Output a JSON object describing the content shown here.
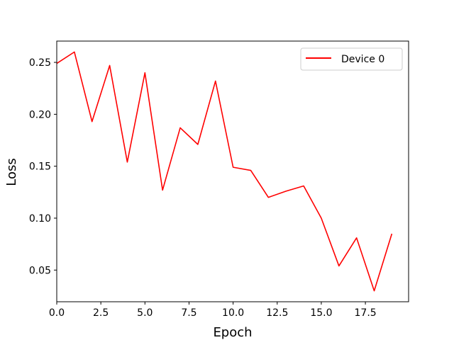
{
  "chart_data": {
    "type": "line",
    "title": "",
    "xlabel": "Epoch",
    "ylabel": "Loss",
    "xlim": [
      0,
      19.95
    ],
    "ylim": [
      0.0195,
      0.2705
    ],
    "xticks": [
      0.0,
      2.5,
      5.0,
      7.5,
      10.0,
      12.5,
      15.0,
      17.5
    ],
    "xtick_labels": [
      "0.0",
      "2.5",
      "5.0",
      "7.5",
      "10.0",
      "12.5",
      "15.0",
      "17.5"
    ],
    "yticks": [
      0.05,
      0.1,
      0.15,
      0.2,
      0.25
    ],
    "ytick_labels": [
      "0.05",
      "0.10",
      "0.15",
      "0.20",
      "0.25"
    ],
    "grid": false,
    "legend_position": "top-right",
    "series": [
      {
        "name": "Device 0",
        "color": "#ff0000",
        "x": [
          0,
          1,
          2,
          3,
          4,
          5,
          6,
          7,
          8,
          9,
          10,
          11,
          12,
          13,
          14,
          15,
          16,
          17,
          18,
          19
        ],
        "values": [
          0.249,
          0.26,
          0.193,
          0.247,
          0.154,
          0.24,
          0.127,
          0.187,
          0.171,
          0.232,
          0.149,
          0.146,
          0.12,
          0.126,
          0.131,
          0.1,
          0.054,
          0.081,
          0.03,
          0.085
        ]
      }
    ]
  }
}
